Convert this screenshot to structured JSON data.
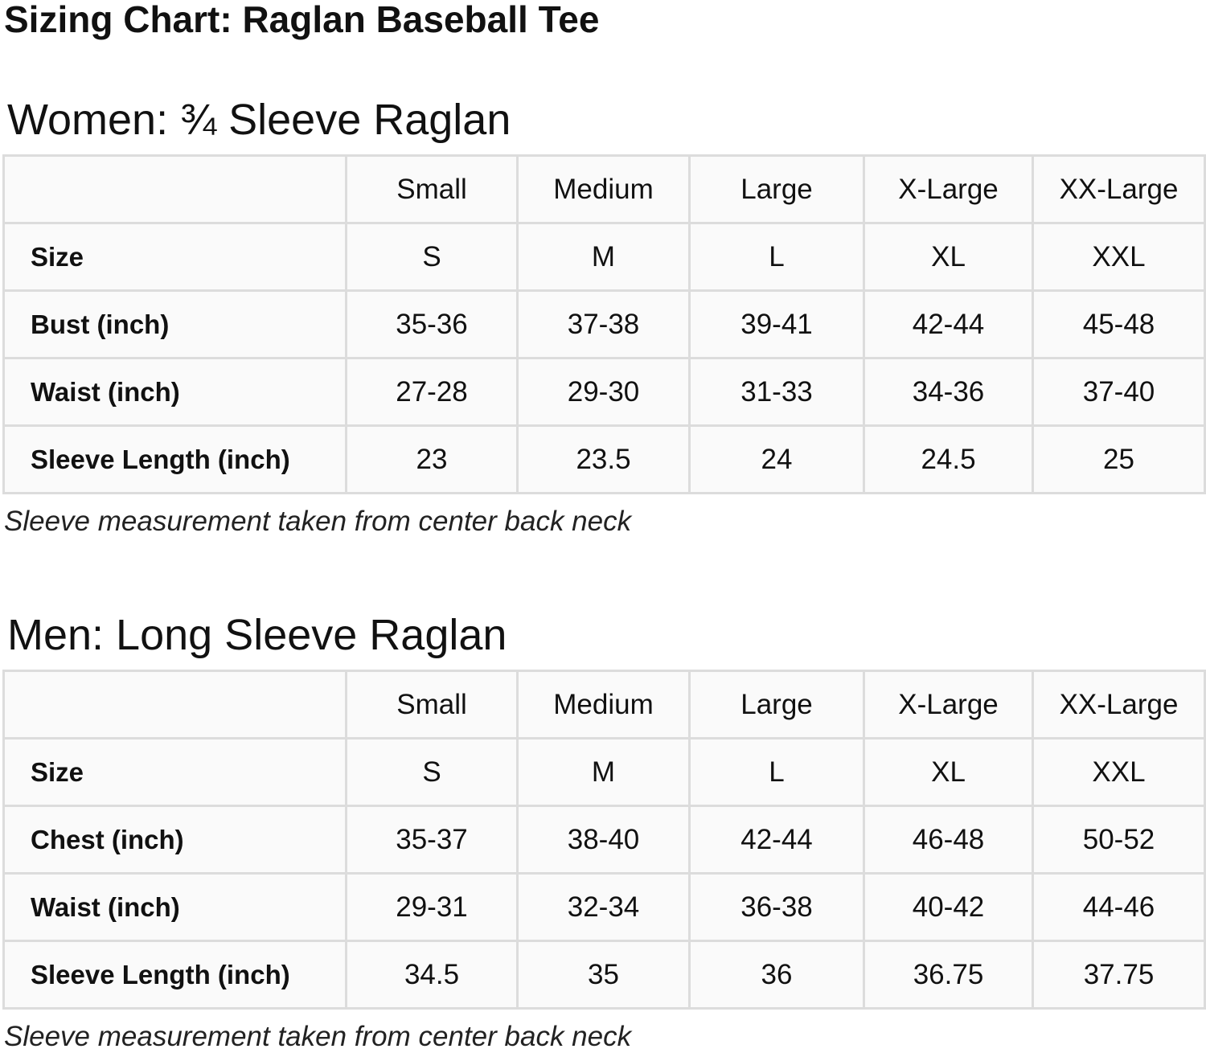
{
  "title": "Sizing Chart: Raglan Baseball Tee",
  "sections": [
    {
      "heading": "Women: ¾ Sleeve Raglan",
      "table": {
        "columns": [
          "Small",
          "Medium",
          "Large",
          "X-Large",
          "XX-Large"
        ],
        "rows": [
          {
            "label": "Size",
            "cells": [
              "S",
              "M",
              "L",
              "XL",
              "XXL"
            ]
          },
          {
            "label": "Bust (inch)",
            "cells": [
              "35-36",
              "37-38",
              "39-41",
              "42-44",
              "45-48"
            ]
          },
          {
            "label": "Waist (inch)",
            "cells": [
              "27-28",
              "29-30",
              "31-33",
              "34-36",
              "37-40"
            ]
          },
          {
            "label": "Sleeve Length (inch)",
            "cells": [
              "23",
              "23.5",
              "24",
              "24.5",
              "25"
            ]
          }
        ]
      },
      "note": "Sleeve measurement taken from center back neck"
    },
    {
      "heading": "Men: Long Sleeve Raglan",
      "table": {
        "columns": [
          "Small",
          "Medium",
          "Large",
          "X-Large",
          "XX-Large"
        ],
        "rows": [
          {
            "label": "Size",
            "cells": [
              "S",
              "M",
              "L",
              "XL",
              "XXL"
            ]
          },
          {
            "label": "Chest (inch)",
            "cells": [
              "35-37",
              "38-40",
              "42-44",
              "46-48",
              "50-52"
            ]
          },
          {
            "label": "Waist (inch)",
            "cells": [
              "29-31",
              "32-34",
              "36-38",
              "40-42",
              "44-46"
            ]
          },
          {
            "label": "Sleeve Length (inch)",
            "cells": [
              "34.5",
              "35",
              "36",
              "36.75",
              "37.75"
            ]
          }
        ]
      },
      "note": "Sleeve measurement taken from center back neck"
    }
  ]
}
